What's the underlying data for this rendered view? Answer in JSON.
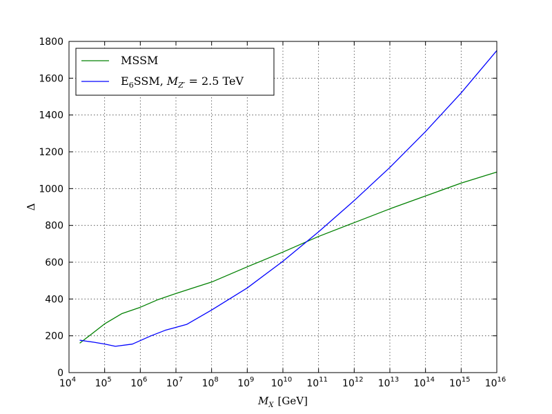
{
  "chart_data": {
    "type": "line",
    "title": "",
    "xlabel": "M_X [GeV]",
    "xlabel_main": "M",
    "xlabel_sub": "X",
    "xlabel_unit": "[GeV]",
    "ylabel": "Δ",
    "x_scale": "log",
    "xlim": [
      10000,
      1e+16
    ],
    "ylim": [
      0,
      1800
    ],
    "grid": true,
    "legend_position": "top-left",
    "x_ticks": [
      {
        "value": 10000.0,
        "base": "10",
        "exp": "4"
      },
      {
        "value": 100000.0,
        "base": "10",
        "exp": "5"
      },
      {
        "value": 1000000.0,
        "base": "10",
        "exp": "6"
      },
      {
        "value": 10000000.0,
        "base": "10",
        "exp": "7"
      },
      {
        "value": 100000000.0,
        "base": "10",
        "exp": "8"
      },
      {
        "value": 1000000000.0,
        "base": "10",
        "exp": "9"
      },
      {
        "value": 10000000000.0,
        "base": "10",
        "exp": "10"
      },
      {
        "value": 100000000000.0,
        "base": "10",
        "exp": "11"
      },
      {
        "value": 1000000000000.0,
        "base": "10",
        "exp": "12"
      },
      {
        "value": 10000000000000.0,
        "base": "10",
        "exp": "13"
      },
      {
        "value": 100000000000000.0,
        "base": "10",
        "exp": "14"
      },
      {
        "value": 1000000000000000.0,
        "base": "10",
        "exp": "15"
      },
      {
        "value": 1e+16,
        "base": "10",
        "exp": "16"
      }
    ],
    "y_ticks": [
      0,
      200,
      400,
      600,
      800,
      1000,
      1200,
      1400,
      1600,
      1800
    ],
    "series": [
      {
        "name": "MSSM",
        "legend_parts": [
          "MSSM"
        ],
        "color": "#008000",
        "points": [
          [
            20000,
            160
          ],
          [
            40000,
            205
          ],
          [
            100000,
            265
          ],
          [
            300000,
            320
          ],
          [
            1000000,
            355
          ],
          [
            3000000,
            395
          ],
          [
            10000000,
            430
          ],
          [
            30000000,
            460
          ],
          [
            100000000,
            492
          ],
          [
            1000000000.0,
            575
          ],
          [
            10000000000.0,
            655
          ],
          [
            100000000000.0,
            740
          ],
          [
            1000000000000.0,
            815
          ],
          [
            10000000000000.0,
            890
          ],
          [
            100000000000000.0,
            960
          ],
          [
            1000000000000000.0,
            1030
          ],
          [
            1e+16,
            1090
          ]
        ]
      },
      {
        "name": "E6SSM, M_Z' = 2.5 TeV",
        "legend_parts": [
          "E",
          "6",
          "SSM, ",
          "M",
          "Z′",
          " = 2.5 TeV"
        ],
        "color": "#0000ff",
        "points": [
          [
            20000,
            176
          ],
          [
            50000,
            165
          ],
          [
            100000,
            155
          ],
          [
            200000,
            143
          ],
          [
            600000,
            155
          ],
          [
            2000000,
            200
          ],
          [
            5000000,
            230
          ],
          [
            20000000,
            262
          ],
          [
            100000000,
            340
          ],
          [
            1000000000.0,
            460
          ],
          [
            10000000000.0,
            605
          ],
          [
            100000000000.0,
            765
          ],
          [
            1000000000000.0,
            935
          ],
          [
            10000000000000.0,
            1115
          ],
          [
            100000000000000.0,
            1310
          ],
          [
            1000000000000000.0,
            1520
          ],
          [
            1e+16,
            1750
          ]
        ]
      }
    ]
  }
}
